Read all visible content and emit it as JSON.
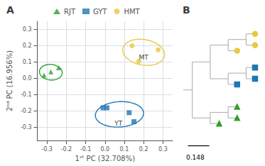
{
  "chart_data": [
    {
      "type": "scatter",
      "title": "A",
      "xlabel": "1ˢᵗ PC (32.708%)",
      "ylabel": "2ⁿᵈ PC (16.956%)",
      "xlim": [
        -0.35,
        0.35
      ],
      "ylim": [
        -0.38,
        0.35
      ],
      "xticks": [
        -0.3,
        -0.2,
        -0.1,
        {
          "value": 0,
          "label": "0.0"
        },
        0.1,
        0.2,
        0.3
      ],
      "yticks": [
        -0.3,
        -0.2,
        -0.1,
        {
          "value": 0,
          "label": "0.0"
        },
        0.1,
        0.2,
        0.3
      ],
      "grid": true,
      "legend": "top",
      "series": [
        {
          "name": "RJT",
          "color": "#2ca02c",
          "marker": "triangle",
          "x": [
            -0.315,
            -0.28,
            -0.24
          ],
          "values": [
            0.02,
            0.04,
            0.065
          ],
          "ellipse": {
            "center": [
              -0.28,
              0.038
            ],
            "width": 0.118,
            "height": 0.095,
            "angle": -10
          }
        },
        {
          "name": "GYT",
          "color": "#1f77b4",
          "marker": "square",
          "x": [
            -0.01,
            0.01,
            0.125,
            0.15
          ],
          "values": [
            -0.18,
            -0.18,
            -0.21,
            -0.265
          ],
          "ellipse": {
            "center": [
              0.075,
              -0.22
            ],
            "width": 0.25,
            "height": 0.155,
            "angle": 5
          }
        },
        {
          "name": "HMT",
          "color": "#e8c840",
          "marker": "circle",
          "x": [
            0.14,
            0.175,
            0.275
          ],
          "values": [
            0.2,
            0.105,
            0.175
          ],
          "ellipse": {
            "center": [
              0.2,
              0.16
            ],
            "width": 0.22,
            "height": 0.155,
            "angle": -15
          }
        }
      ],
      "annotations": [
        {
          "text": "YT",
          "x": 0.07,
          "y": -0.275
        },
        {
          "text": "MT",
          "x": 0.2,
          "y": 0.13
        }
      ]
    },
    {
      "type": "dendrogram",
      "title": "B",
      "tree": [
        [
          [
            [
              "HMT",
              "HMT"
            ],
            "HMT"
          ],
          [
            [
              "GYT",
              "GYT"
            ],
            "GYT"
          ]
        ],
        [
          [
            "RJT",
            "RJT"
          ],
          "RJT"
        ]
      ],
      "annotations": [
        {
          "text": "0.148"
        }
      ]
    }
  ]
}
